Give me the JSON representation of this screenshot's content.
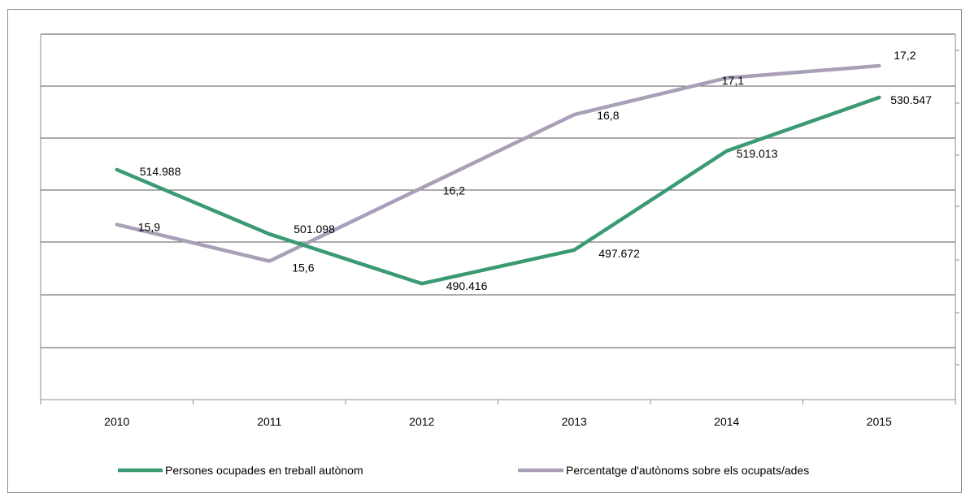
{
  "chart_data": {
    "type": "line",
    "categories": [
      "2010",
      "2011",
      "2012",
      "2013",
      "2014",
      "2015"
    ],
    "series": [
      {
        "name": "Persones ocupades en treball autònom",
        "color": "#3a9a72",
        "values": [
          514988,
          501098,
          490416,
          497672,
          519013,
          530547
        ],
        "labels": [
          "514.988",
          "501.098",
          "490.416",
          "497.672",
          "519.013",
          "530.547"
        ]
      },
      {
        "name": "Percentatge d'autònoms sobre els ocupats/ades",
        "color": "#a99fb7",
        "values": [
          15.9,
          15.6,
          16.2,
          16.8,
          17.1,
          17.2
        ],
        "labels": [
          "15,9",
          "15,6",
          "16,2",
          "16,8",
          "17,1",
          "17,2"
        ]
      }
    ],
    "title": "",
    "xlabel": "",
    "ylabel": "",
    "grid": true,
    "legend_position": "bottom",
    "gridline_color": "#595959",
    "axis_color": "#8c8c8c"
  }
}
